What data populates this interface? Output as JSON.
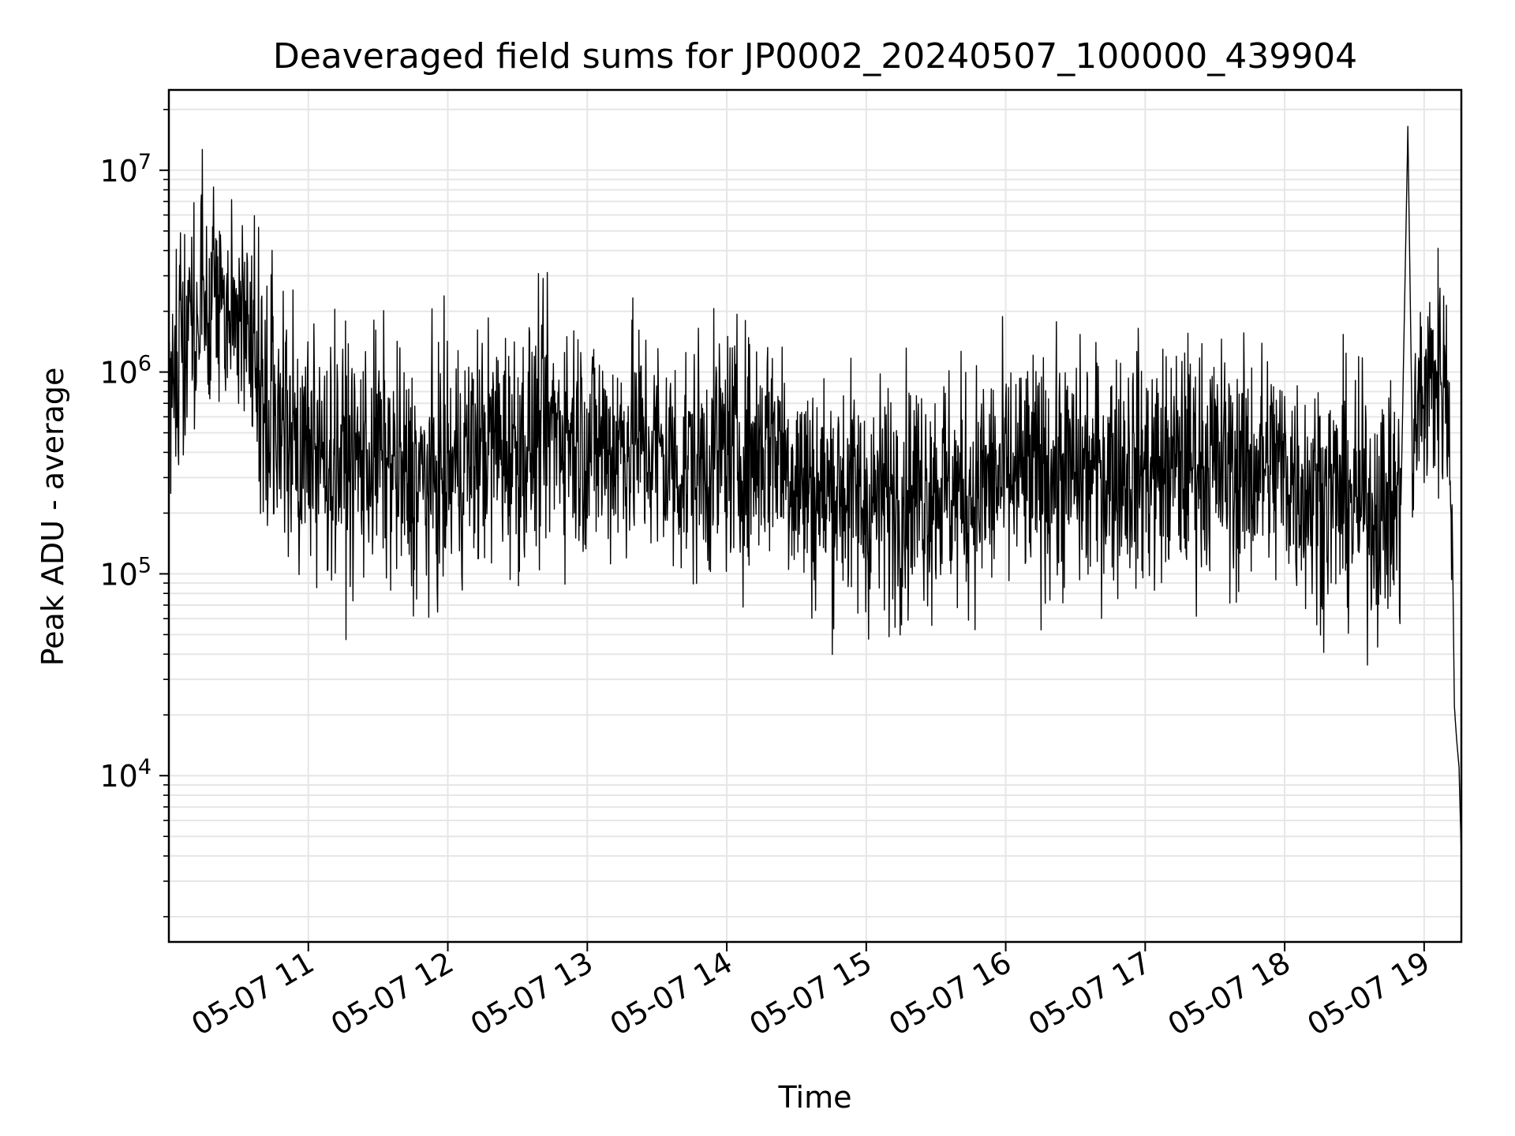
{
  "chart_data": {
    "type": "line",
    "title": "Deaveraged field sums for JP0002_20240507_100000_439904",
    "xlabel": "Time",
    "ylabel": "Peak ADU - average",
    "yscale": "log",
    "grid": true,
    "line_color": "#000000",
    "grid_color": "#e6e6e6",
    "x_ticks": [
      "05-07 11",
      "05-07 12",
      "05-07 13",
      "05-07 14",
      "05-07 15",
      "05-07 16",
      "05-07 17",
      "05-07 18",
      "05-07 19"
    ],
    "x_tick_hours": [
      11,
      12,
      13,
      14,
      15,
      16,
      17,
      18,
      19
    ],
    "xlim": [
      "2024-05-07 10:00",
      "2024-05-07 19:16"
    ],
    "ylim": [
      1500,
      25000000
    ],
    "y_ticks": [
      {
        "base": "10",
        "exp": "4",
        "value": 10000
      },
      {
        "base": "10",
        "exp": "5",
        "value": 100000
      },
      {
        "base": "10",
        "exp": "6",
        "value": 1000000
      },
      {
        "base": "10",
        "exp": "7",
        "value": 10000000
      }
    ],
    "series": [
      {
        "points": [
          [
            "2024-05-07 10:00",
            800000
          ],
          [
            "2024-05-07 10:05",
            1400000
          ],
          [
            "2024-05-07 10:10",
            1800000
          ],
          [
            "2024-05-07 10:15",
            2000000
          ],
          [
            "2024-05-07 10:20",
            2300000
          ],
          [
            "2024-05-07 10:25",
            2200000
          ],
          [
            "2024-05-07 10:30",
            2000000
          ],
          [
            "2024-05-07 10:35",
            1500000
          ],
          [
            "2024-05-07 10:40",
            950000
          ],
          [
            "2024-05-07 10:45",
            650000
          ],
          [
            "2024-05-07 10:50",
            600000
          ],
          [
            "2024-05-07 10:55",
            450000
          ],
          [
            "2024-05-07 11:00",
            420000
          ],
          [
            "2024-05-07 11:10",
            380000
          ],
          [
            "2024-05-07 11:20",
            360000
          ],
          [
            "2024-05-07 11:30",
            400000
          ],
          [
            "2024-05-07 11:40",
            300000
          ],
          [
            "2024-05-07 11:50",
            280000
          ],
          [
            "2024-05-07 12:00",
            320000
          ],
          [
            "2024-05-07 12:10",
            400000
          ],
          [
            "2024-05-07 12:20",
            450000
          ],
          [
            "2024-05-07 12:30",
            420000
          ],
          [
            "2024-05-07 12:40",
            500000
          ],
          [
            "2024-05-07 12:50",
            550000
          ],
          [
            "2024-05-07 13:00",
            450000
          ],
          [
            "2024-05-07 13:10",
            420000
          ],
          [
            "2024-05-07 13:20",
            480000
          ],
          [
            "2024-05-07 13:30",
            400000
          ],
          [
            "2024-05-07 13:40",
            340000
          ],
          [
            "2024-05-07 13:50",
            360000
          ],
          [
            "2024-05-07 14:00",
            420000
          ],
          [
            "2024-05-07 14:10",
            380000
          ],
          [
            "2024-05-07 14:20",
            500000
          ],
          [
            "2024-05-07 14:30",
            300000
          ],
          [
            "2024-05-07 14:40",
            250000
          ],
          [
            "2024-05-07 14:50",
            270000
          ],
          [
            "2024-05-07 15:00",
            220000
          ],
          [
            "2024-05-07 15:10",
            240000
          ],
          [
            "2024-05-07 15:20",
            260000
          ],
          [
            "2024-05-07 15:30",
            280000
          ],
          [
            "2024-05-07 15:40",
            250000
          ],
          [
            "2024-05-07 15:50",
            270000
          ],
          [
            "2024-05-07 16:00",
            300000
          ],
          [
            "2024-05-07 16:10",
            300000
          ],
          [
            "2024-05-07 16:20",
            320000
          ],
          [
            "2024-05-07 16:30",
            310000
          ],
          [
            "2024-05-07 16:40",
            320000
          ],
          [
            "2024-05-07 16:50",
            350000
          ],
          [
            "2024-05-07 17:00",
            330000
          ],
          [
            "2024-05-07 17:10",
            330000
          ],
          [
            "2024-05-07 17:20",
            370000
          ],
          [
            "2024-05-07 17:30",
            360000
          ],
          [
            "2024-05-07 17:40",
            320000
          ],
          [
            "2024-05-07 17:50",
            350000
          ],
          [
            "2024-05-07 18:00",
            330000
          ],
          [
            "2024-05-07 18:10",
            260000
          ],
          [
            "2024-05-07 18:20",
            250000
          ],
          [
            "2024-05-07 18:30",
            230000
          ],
          [
            "2024-05-07 18:40",
            210000
          ],
          [
            "2024-05-07 18:50",
            220000
          ],
          [
            "2024-05-07 18:53",
            16500000
          ],
          [
            "2024-05-07 18:55",
            350000
          ],
          [
            "2024-05-07 18:58",
            700000
          ],
          [
            "2024-05-07 19:03",
            900000
          ],
          [
            "2024-05-07 19:07",
            1000000
          ],
          [
            "2024-05-07 19:09",
            900000
          ],
          [
            "2024-05-07 19:11",
            600000
          ],
          [
            "2024-05-07 19:12",
            220000
          ],
          [
            "2024-05-07 19:13",
            22000
          ],
          [
            "2024-05-07 19:14",
            15000
          ],
          [
            "2024-05-07 19:15",
            11000
          ],
          [
            "2024-05-07 19:16",
            4000
          ]
        ],
        "noise_amplitude_decades": 0.3
      }
    ]
  }
}
